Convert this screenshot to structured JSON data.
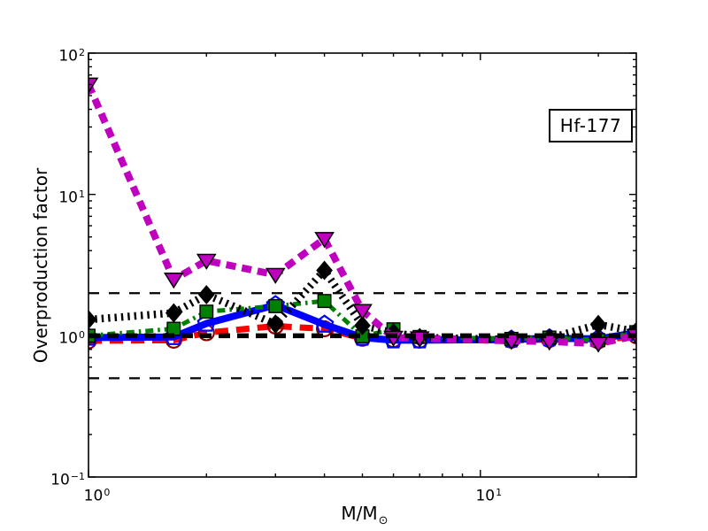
{
  "figure": {
    "annotation_label": "Hf-177",
    "background_color": "#ffffff"
  },
  "chart_data": {
    "type": "line",
    "title": "",
    "xlabel": "M/M⊙",
    "xlabel_parts": {
      "main": "M/M",
      "sub": "⊙"
    },
    "ylabel": "Overproduction factor",
    "xscale": "log",
    "yscale": "log",
    "xlim": [
      1,
      25
    ],
    "ylim": [
      0.1,
      100
    ],
    "grid": false,
    "legend": "none",
    "annotation": "Hf-177",
    "x_ticks": [
      {
        "base": "10",
        "exp": "0",
        "value": 1
      },
      {
        "base": "10",
        "exp": "1",
        "value": 10
      }
    ],
    "y_ticks": [
      {
        "base": "10",
        "exp": "−1",
        "value": 0.1
      },
      {
        "base": "10",
        "exp": "0",
        "value": 1
      },
      {
        "base": "10",
        "exp": "1",
        "value": 10
      },
      {
        "base": "10",
        "exp": "2",
        "value": 100
      }
    ],
    "x": [
      1,
      1.65,
      2,
      3,
      4,
      5,
      6,
      7,
      12,
      15,
      20,
      25
    ],
    "series": [
      {
        "name": "red-dashed-circles",
        "color": "#ff0000",
        "style": "dashed",
        "line_width": 7,
        "marker": "circle-open",
        "marker_edge": "#8b0000",
        "values": [
          0.92,
          0.93,
          1.05,
          1.17,
          1.12,
          0.96,
          0.94,
          0.93,
          0.93,
          0.94,
          0.92,
          1.0
        ]
      },
      {
        "name": "blue-solid-pentagons",
        "color": "#0000ff",
        "style": "solid",
        "line_width": 8,
        "marker": "pentagon-open",
        "marker_edge": "#0000ff",
        "values": [
          0.97,
          0.98,
          1.22,
          1.65,
          1.2,
          0.97,
          0.93,
          0.93,
          0.94,
          0.96,
          0.95,
          1.05
        ]
      },
      {
        "name": "green-dashdot-squares",
        "color": "#008000",
        "style": "dashdot",
        "line_width": 5,
        "marker": "square",
        "marker_fill": "#008000",
        "marker_edge": "#000000",
        "values": [
          1.0,
          1.12,
          1.48,
          1.62,
          1.76,
          0.99,
          1.11,
          0.98,
          0.95,
          0.97,
          0.93,
          1.06
        ]
      },
      {
        "name": "black-dotted-diamonds",
        "color": "#000000",
        "style": "dotted",
        "line_width": 8.5,
        "marker": "diamond",
        "marker_fill": "#000000",
        "marker_edge": "#000000",
        "values": [
          1.3,
          1.45,
          1.95,
          1.21,
          2.9,
          1.18,
          1.05,
          0.97,
          0.94,
          0.96,
          1.2,
          1.07
        ]
      },
      {
        "name": "magenta-dashed-triangles",
        "color": "#bf00bf",
        "style": "dashed-long",
        "line_width": 8,
        "marker": "triangle-down",
        "marker_fill": "#bf00bf",
        "marker_edge": "#000000",
        "values": [
          60,
          2.5,
          3.4,
          2.7,
          4.85,
          1.5,
          0.97,
          0.96,
          0.92,
          0.91,
          0.88,
          1.0
        ]
      }
    ],
    "reference_lines": [
      {
        "y": 2,
        "color": "#000000",
        "style": "dashed",
        "line_width": 2.2
      },
      {
        "y": 1,
        "color": "#000000",
        "style": "dashed",
        "line_width": 5.5
      },
      {
        "y": 0.5,
        "color": "#000000",
        "style": "dashed",
        "line_width": 2.2
      }
    ]
  }
}
